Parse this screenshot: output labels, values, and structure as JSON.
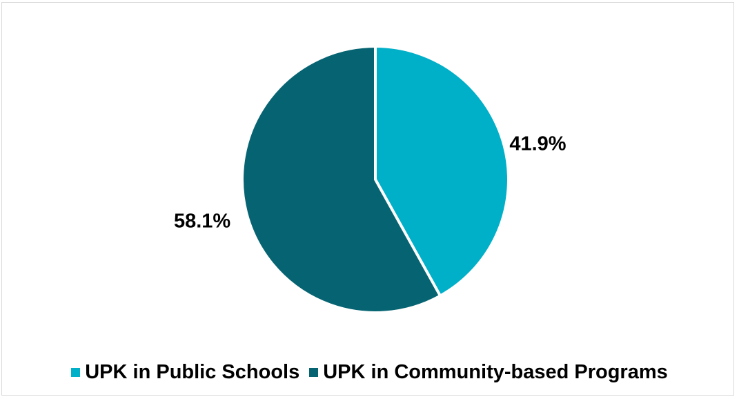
{
  "chart_data": {
    "type": "pie",
    "title": "",
    "slices": [
      {
        "name": "UPK in Public Schools",
        "value": 41.9,
        "label": "41.9%",
        "color": "#00AFC8"
      },
      {
        "name": "UPK in Community-based Programs",
        "value": 58.1,
        "label": "58.1%",
        "color": "#066472"
      }
    ],
    "start_angle_deg": 0,
    "direction": "clockwise",
    "legend_position": "bottom"
  }
}
